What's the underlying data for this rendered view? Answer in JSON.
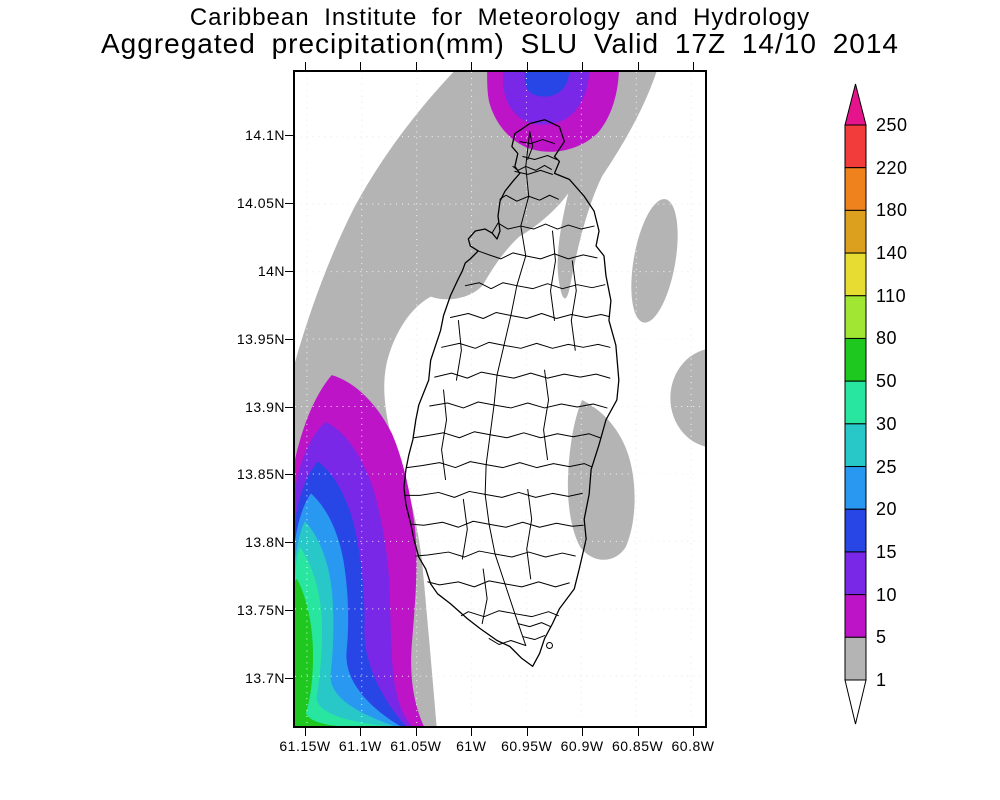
{
  "title": {
    "line1": "Caribbean Institute for Meteorology and Hydrology",
    "line2": "Aggregated precipitation(mm) SLU Valid 17Z 14/10 2014"
  },
  "map": {
    "y_axis_ticks": [
      "14.1N",
      "14.05N",
      "14N",
      "13.95N",
      "13.9N",
      "13.85N",
      "13.8N",
      "13.75N",
      "13.7N"
    ],
    "x_axis_ticks": [
      "61.15W",
      "61.1W",
      "61.05W",
      "61W",
      "60.95W",
      "60.9W",
      "60.85W",
      "60.8W"
    ]
  },
  "legend": {
    "tick_labels_top_to_bottom": [
      "250",
      "220",
      "180",
      "140",
      "110",
      "80",
      "50",
      "30",
      "25",
      "20",
      "15",
      "10",
      "5",
      "1"
    ],
    "segments_top_to_bottom": [
      {
        "range": "220-250",
        "color": "#F23B3B"
      },
      {
        "range": "180-220",
        "color": "#F0821E"
      },
      {
        "range": "140-180",
        "color": "#DCA01E"
      },
      {
        "range": "110-140",
        "color": "#E6DC32"
      },
      {
        "range": "80-110",
        "color": "#A0E632"
      },
      {
        "range": "50-80",
        "color": "#1EC81E"
      },
      {
        "range": "30-50",
        "color": "#28E6A0"
      },
      {
        "range": "25-30",
        "color": "#28C8C8"
      },
      {
        "range": "20-25",
        "color": "#2898F0"
      },
      {
        "range": "15-20",
        "color": "#2846E6"
      },
      {
        "range": "10-15",
        "color": "#7828E6"
      },
      {
        "range": "5-10",
        "color": "#BE14C8"
      },
      {
        "range": "1-5",
        "color": "#B4B4B4"
      }
    ],
    "above_max_arrow_color": "#E6148C",
    "below_min_arrow_color": "#FFFFFF"
  },
  "colors": {
    "gray": "#B4B4B4",
    "magenta": "#BE14C8",
    "violet": "#7828E6",
    "blue": "#2846E6",
    "light_blue": "#2898F0",
    "teal": "#28C8C8",
    "spring_green": "#28E6A0",
    "green": "#1EC81E",
    "grid": "#C4C4C4",
    "coastline": "#000000"
  },
  "chart_data": {
    "type": "contour-map",
    "title": "Aggregated precipitation(mm) SLU Valid 17Z 14/10 2014",
    "region": "Saint Lucia (SLU)",
    "lat_ticks": [
      "14.1N",
      "14.05N",
      "14N",
      "13.95N",
      "13.9N",
      "13.85N",
      "13.8N",
      "13.75N",
      "13.7N"
    ],
    "lon_ticks": [
      "61.15W",
      "61.1W",
      "61.05W",
      "61W",
      "60.95W",
      "60.9W",
      "60.85W",
      "60.8W"
    ],
    "contour_levels_mm": [
      1,
      5,
      10,
      15,
      20,
      25,
      30,
      50,
      80,
      110,
      140,
      180,
      220,
      250
    ],
    "features": [
      {
        "name": "southwest-offshore-maximum",
        "approx_location": "around 61.10W-61.16W, 13.66N-13.90N",
        "max_band_mm": "50-80"
      },
      {
        "name": "north-offshore-maximum",
        "approx_location": "around 61.00W-60.93W, north of 14.12N",
        "max_band_mm": "15-20"
      },
      {
        "name": "west-offshore-light-rain-band",
        "band_mm": "1-5"
      },
      {
        "name": "east-offshore-light-rain-patches",
        "band_mm": "1-5"
      },
      {
        "name": "island-interior",
        "band_mm": "below 1"
      }
    ]
  }
}
